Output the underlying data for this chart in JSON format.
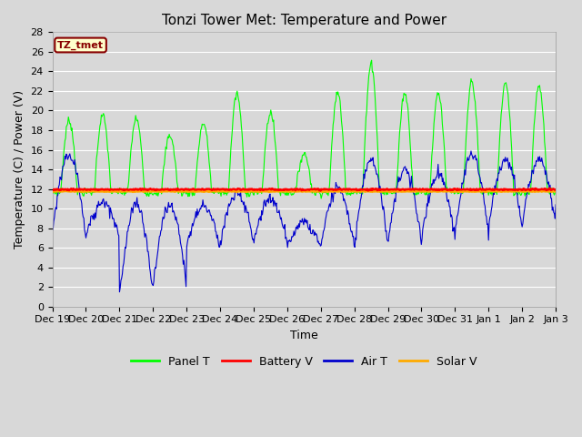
{
  "title": "Tonzi Tower Met: Temperature and Power",
  "xlabel": "Time",
  "ylabel": "Temperature (C) / Power (V)",
  "ylim": [
    0,
    28
  ],
  "yticks": [
    0,
    2,
    4,
    6,
    8,
    10,
    12,
    14,
    16,
    18,
    20,
    22,
    24,
    26,
    28
  ],
  "background_color": "#d8d8d8",
  "plot_bg_color": "#d8d8d8",
  "grid_color": "#ffffff",
  "panel_color": "#00ff00",
  "battery_color": "#ff0000",
  "air_color": "#0000cc",
  "solar_color": "#ffaa00",
  "tz_box_color": "#880000",
  "tz_box_bg": "#ffffcc",
  "title_fontsize": 11,
  "axis_fontsize": 9,
  "tick_fontsize": 8,
  "legend_fontsize": 9,
  "battery_v": 11.95,
  "solar_v": 11.75
}
